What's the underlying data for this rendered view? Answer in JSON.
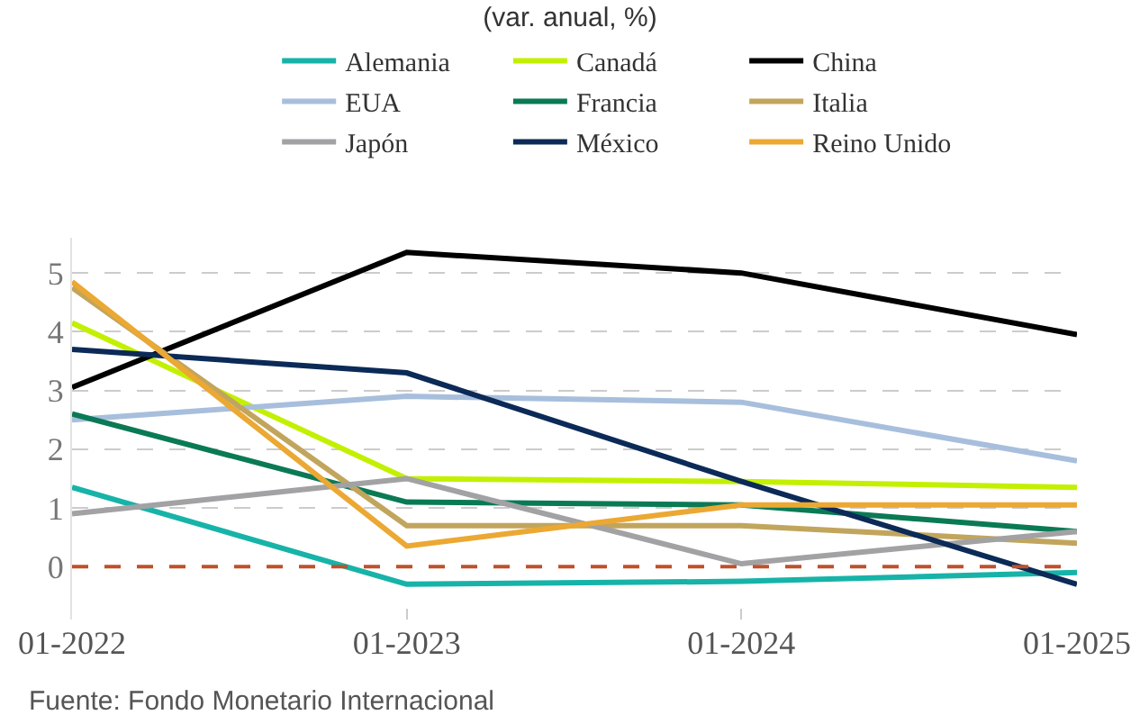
{
  "chart_data": {
    "type": "line",
    "title": "(var. anual, %)",
    "x": [
      "2022-01",
      "2023-01",
      "2024-01",
      "2025-01"
    ],
    "series": [
      {
        "name": "Alemania",
        "color": "#17b3a8",
        "values": [
          1.35,
          -0.3,
          -0.25,
          -0.1
        ]
      },
      {
        "name": "Canadá",
        "color": "#c3f000",
        "values": [
          4.15,
          1.5,
          1.45,
          1.35
        ]
      },
      {
        "name": "China",
        "color": "#000000",
        "values": [
          3.05,
          5.35,
          5.0,
          3.95
        ]
      },
      {
        "name": "EUA",
        "color": "#a7bfdc",
        "values": [
          2.5,
          2.9,
          2.8,
          1.8
        ]
      },
      {
        "name": "Francia",
        "color": "#0a7a55",
        "values": [
          2.6,
          1.1,
          1.05,
          0.6
        ]
      },
      {
        "name": "Italia",
        "color": "#c2a55d",
        "values": [
          4.75,
          0.7,
          0.7,
          0.4
        ]
      },
      {
        "name": "Japón",
        "color": "#a2a2a4",
        "values": [
          0.9,
          1.5,
          0.05,
          0.6
        ]
      },
      {
        "name": "México",
        "color": "#0b2a57",
        "values": [
          3.7,
          3.3,
          1.45,
          -0.3
        ]
      },
      {
        "name": "Reino Unido",
        "color": "#eba833",
        "values": [
          4.85,
          0.35,
          1.05,
          1.05
        ]
      }
    ],
    "xlim": [
      "2022-01",
      "2025-01"
    ],
    "xticks": [
      {
        "value": "2022-01",
        "label": "01-2022"
      },
      {
        "value": "2023-01",
        "label": "01-2023"
      },
      {
        "value": "2024-01",
        "label": "01-2024"
      },
      {
        "value": "2025-01",
        "label": "01-2025"
      }
    ],
    "ylim": [
      -0.9,
      5.6
    ],
    "yticks": [
      0,
      1,
      2,
      3,
      4,
      5
    ],
    "ref_lines": [
      {
        "axis": "y",
        "value": 0,
        "color": "#c0502a",
        "line_style": "dashed"
      }
    ],
    "grid": "y",
    "legend": "top",
    "marker": "none",
    "line_style": "solid",
    "annotations": [
      "Fuente: Fondo Monetario Internacional"
    ]
  }
}
